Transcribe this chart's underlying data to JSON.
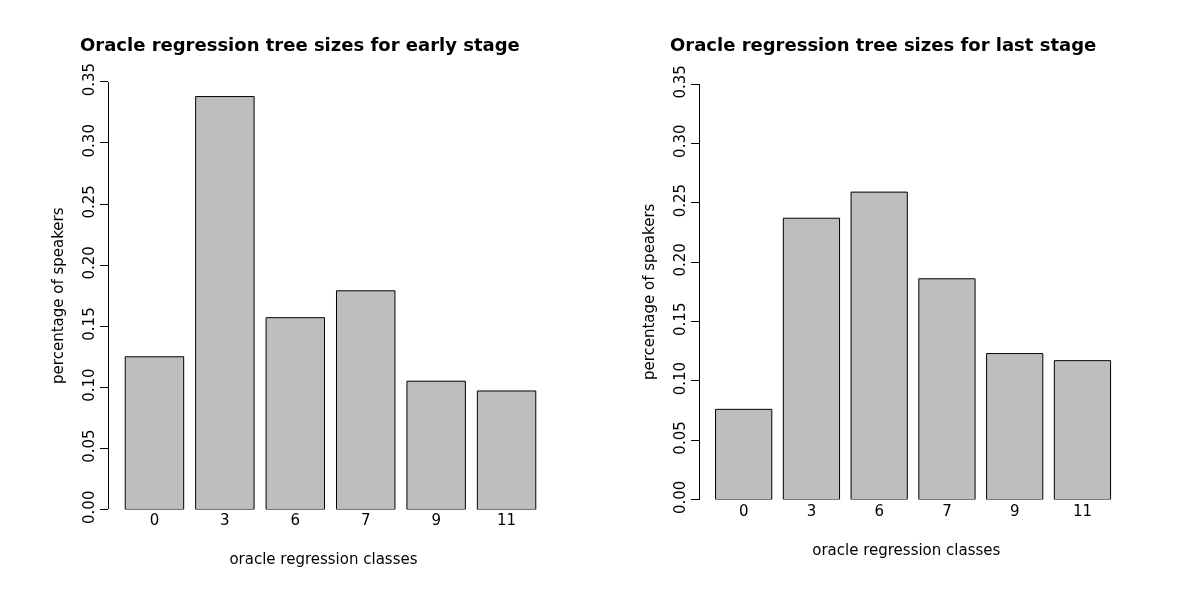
{
  "chart_data": [
    {
      "type": "bar",
      "title": "Oracle regression tree sizes for early stage",
      "xlabel": "oracle regression classes",
      "ylabel": "percentage of speakers",
      "categories": [
        "0",
        "3",
        "6",
        "7",
        "9",
        "11"
      ],
      "values": [
        0.125,
        0.338,
        0.157,
        0.179,
        0.105,
        0.097
      ],
      "color": "#bebebe",
      "ylim": [
        0,
        0.35
      ],
      "yticks": [
        {
          "value": 0,
          "label": "0.00"
        },
        {
          "value": 0.05,
          "label": "0.05"
        },
        {
          "value": 0.1,
          "label": "0.10"
        },
        {
          "value": 0.15,
          "label": "0.15"
        },
        {
          "value": 0.2,
          "label": "0.20"
        },
        {
          "value": 0.25,
          "label": "0.25"
        },
        {
          "value": 0.3,
          "label": "0.30"
        },
        {
          "value": 0.35,
          "label": "0.35"
        }
      ]
    },
    {
      "type": "bar",
      "title": "Oracle regression tree sizes for last stage",
      "xlabel": "oracle regression classes",
      "ylabel": "percentage of speakers",
      "categories": [
        "0",
        "3",
        "6",
        "7",
        "9",
        "11"
      ],
      "values": [
        0.076,
        0.237,
        0.259,
        0.186,
        0.123,
        0.117
      ],
      "color": "#bebebe",
      "ylim": [
        0,
        0.35
      ],
      "yticks": [
        {
          "value": 0,
          "label": "0.00"
        },
        {
          "value": 0.05,
          "label": "0.05"
        },
        {
          "value": 0.1,
          "label": "0.10"
        },
        {
          "value": 0.15,
          "label": "0.15"
        },
        {
          "value": 0.2,
          "label": "0.20"
        },
        {
          "value": 0.25,
          "label": "0.25"
        },
        {
          "value": 0.3,
          "label": "0.30"
        },
        {
          "value": 0.35,
          "label": "0.35"
        }
      ]
    }
  ]
}
